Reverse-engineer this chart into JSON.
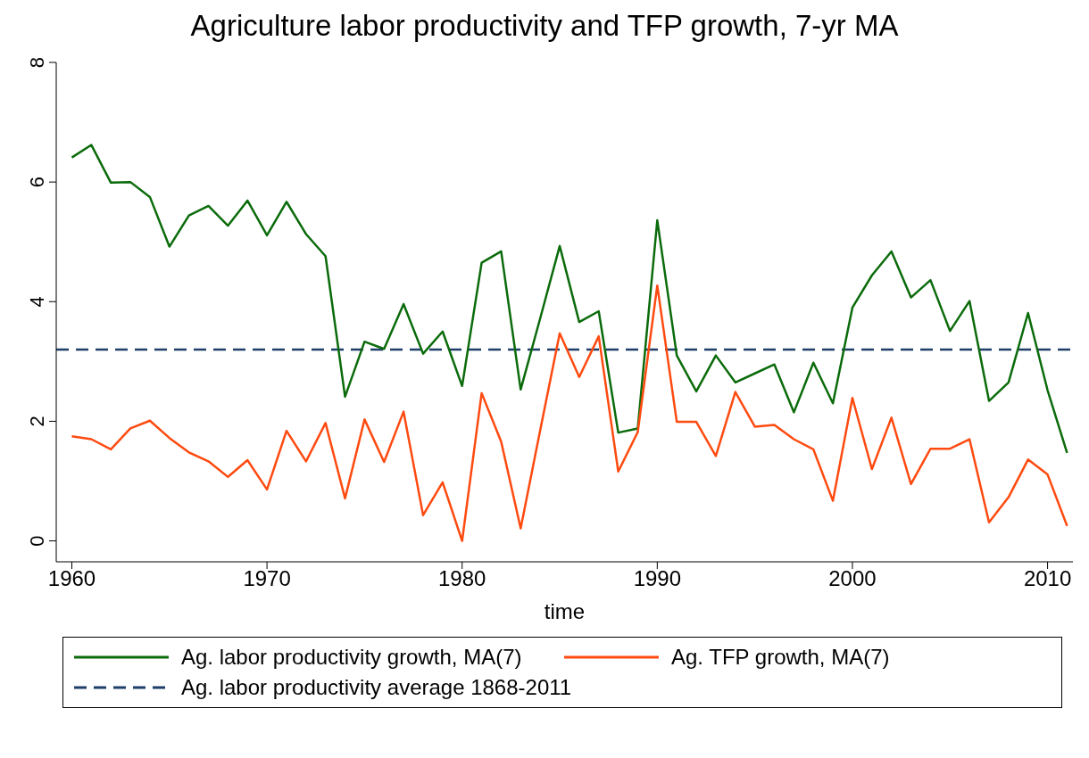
{
  "chart_data": {
    "type": "line",
    "title": "Agriculture labor productivity and TFP growth, 7-yr MA",
    "xlabel": "time",
    "x": [
      1960,
      1961,
      1962,
      1963,
      1964,
      1965,
      1966,
      1967,
      1968,
      1969,
      1970,
      1971,
      1972,
      1973,
      1974,
      1975,
      1976,
      1977,
      1978,
      1979,
      1980,
      1981,
      1982,
      1983,
      1984,
      1985,
      1986,
      1987,
      1988,
      1989,
      1990,
      1991,
      1992,
      1993,
      1994,
      1995,
      1996,
      1997,
      1998,
      1999,
      2000,
      2001,
      2002,
      2003,
      2004,
      2005,
      2006,
      2007,
      2008,
      2009,
      2010,
      2011
    ],
    "series": [
      {
        "name": "Ag. labor productivity growth, MA(7)",
        "color": "#0b6b0b",
        "values": [
          6.41,
          6.62,
          5.99,
          6.0,
          5.75,
          4.92,
          5.44,
          5.6,
          5.27,
          5.69,
          5.11,
          5.67,
          5.13,
          4.76,
          2.41,
          3.33,
          3.21,
          3.96,
          3.13,
          3.5,
          2.59,
          4.65,
          4.84,
          2.53,
          3.72,
          4.93,
          3.66,
          3.84,
          1.81,
          1.88,
          5.36,
          3.1,
          2.5,
          3.1,
          2.65,
          2.8,
          2.95,
          2.15,
          2.98,
          2.3,
          3.9,
          4.44,
          4.84,
          4.07,
          4.36,
          3.51,
          4.01,
          2.34,
          2.65,
          3.81,
          2.52,
          1.47
        ]
      },
      {
        "name": "Ag. TFP growth, MA(7)",
        "color": "#ff4a10",
        "values": [
          1.75,
          1.7,
          1.53,
          1.88,
          2.01,
          1.72,
          1.48,
          1.33,
          1.07,
          1.35,
          0.86,
          1.84,
          1.33,
          1.97,
          0.71,
          2.03,
          1.32,
          2.16,
          0.43,
          0.98,
          0.0,
          2.47,
          1.66,
          0.21,
          1.85,
          3.47,
          2.74,
          3.42,
          1.16,
          1.82,
          4.27,
          1.99,
          1.99,
          1.42,
          2.49,
          1.91,
          1.94,
          1.7,
          1.53,
          0.67,
          2.39,
          1.2,
          2.06,
          0.95,
          1.54,
          1.54,
          1.7,
          0.31,
          0.73,
          1.36,
          1.11,
          0.25
        ]
      }
    ],
    "ref_lines": [
      {
        "axis": "y",
        "value": 3.2,
        "label": "Ag. labor productivity average 1868-2011",
        "color": "#1f3f6a",
        "line_style": "dashed"
      }
    ],
    "xlim": [
      1959.2,
      2011.3
    ],
    "xticks": [
      1960,
      1970,
      1980,
      1990,
      2000,
      2010
    ],
    "ylim": [
      -0.35,
      8
    ],
    "yticks": [
      0,
      2,
      4,
      6,
      8
    ],
    "grid": false,
    "legend": "bottom",
    "marker": "none",
    "line_style": "solid"
  }
}
